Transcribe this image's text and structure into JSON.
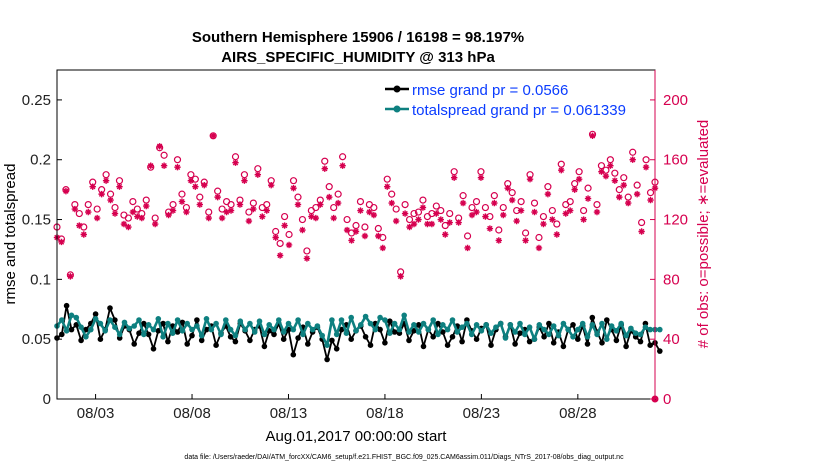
{
  "chart_data": {
    "type": "line",
    "title_line1": "Southern Hemisphere 15906 / 16198 = 98.197%",
    "title_line2": "AIRS_SPECIFIC_HUMIDITY @ 313 hPa",
    "xlabel": "Aug.01,2017 00:00:00 start",
    "ylabel_left": "rmse and totalspread",
    "ylabel_right": "# of obs: o=possible; ∗=evaluated",
    "x_start_day": 1,
    "x_end_day": 32,
    "step_days": 0.25,
    "x_ticks": [
      {
        "day": 3,
        "label": "08/03"
      },
      {
        "day": 8,
        "label": "08/08"
      },
      {
        "day": 13,
        "label": "08/13"
      },
      {
        "day": 18,
        "label": "08/18"
      },
      {
        "day": 23,
        "label": "08/23"
      },
      {
        "day": 28,
        "label": "08/28"
      }
    ],
    "ylim_left": [
      0,
      0.275
    ],
    "yticks_left": [
      "0",
      "0.05",
      "0.1",
      "0.15",
      "0.2",
      "0.25"
    ],
    "ylim_right": [
      0,
      220
    ],
    "yticks_right": [
      "0",
      "40",
      "80",
      "120",
      "160",
      "200"
    ],
    "colors": {
      "rmse": "#000000",
      "spread": "#0e8080",
      "obs": "#d6004f",
      "legend_text": "#0a3cff"
    },
    "series": [
      {
        "name": "rmse grand pr = 0.0566",
        "key": "rmse",
        "values": [
          0.051,
          0.054,
          0.078,
          0.058,
          0.062,
          0.049,
          0.058,
          0.063,
          0.071,
          0.05,
          0.058,
          0.076,
          0.066,
          0.051,
          0.061,
          0.058,
          0.046,
          0.055,
          0.063,
          0.054,
          0.042,
          0.057,
          0.063,
          0.048,
          0.061,
          0.056,
          0.064,
          0.046,
          0.053,
          0.066,
          0.049,
          0.058,
          0.061,
          0.045,
          0.055,
          0.061,
          0.052,
          0.048,
          0.063,
          0.057,
          0.049,
          0.058,
          0.061,
          0.044,
          0.057,
          0.054,
          0.063,
          0.05,
          0.058,
          0.037,
          0.051,
          0.06,
          0.046,
          0.056,
          0.06,
          0.05,
          0.033,
          0.049,
          0.042,
          0.058,
          0.062,
          0.05,
          0.057,
          0.061,
          0.052,
          0.045,
          0.063,
          0.058,
          0.047,
          0.065,
          0.056,
          0.055,
          0.063,
          0.049,
          0.057,
          0.062,
          0.044,
          0.058,
          0.052,
          0.063,
          0.056,
          0.045,
          0.052,
          0.061,
          0.048,
          0.066,
          0.057,
          0.05,
          0.059,
          0.062,
          0.045,
          0.058,
          0.063,
          0.052,
          0.062,
          0.046,
          0.055,
          0.058,
          0.048,
          0.05,
          0.06,
          0.052,
          0.063,
          0.047,
          0.056,
          0.044,
          0.058,
          0.062,
          0.05,
          0.061,
          0.046,
          0.068,
          0.056,
          0.047,
          0.066,
          0.058,
          0.049,
          0.062,
          0.044,
          0.057,
          0.052,
          0.048,
          0.063,
          0.045,
          0.047,
          0.04
        ]
      },
      {
        "name": "totalspread grand pr = 0.061339",
        "key": "spread",
        "values": [
          0.061,
          0.066,
          0.057,
          0.07,
          0.068,
          0.06,
          0.052,
          0.058,
          0.067,
          0.063,
          0.057,
          0.066,
          0.06,
          0.054,
          0.064,
          0.059,
          0.061,
          0.066,
          0.054,
          0.062,
          0.058,
          0.067,
          0.052,
          0.063,
          0.055,
          0.066,
          0.057,
          0.063,
          0.058,
          0.061,
          0.053,
          0.067,
          0.058,
          0.063,
          0.054,
          0.066,
          0.058,
          0.053,
          0.065,
          0.058,
          0.063,
          0.056,
          0.065,
          0.054,
          0.062,
          0.058,
          0.066,
          0.056,
          0.063,
          0.058,
          0.066,
          0.054,
          0.063,
          0.058,
          0.061,
          0.053,
          0.045,
          0.066,
          0.054,
          0.066,
          0.055,
          0.068,
          0.057,
          0.062,
          0.069,
          0.063,
          0.058,
          0.068,
          0.066,
          0.055,
          0.063,
          0.058,
          0.07,
          0.056,
          0.062,
          0.056,
          0.063,
          0.058,
          0.066,
          0.054,
          0.062,
          0.058,
          0.066,
          0.056,
          0.06,
          0.063,
          0.054,
          0.062,
          0.057,
          0.062,
          0.055,
          0.06,
          0.063,
          0.051,
          0.062,
          0.056,
          0.063,
          0.054,
          0.06,
          0.05,
          0.062,
          0.058,
          0.054,
          0.061,
          0.053,
          0.063,
          0.058,
          0.052,
          0.058,
          0.063,
          0.052,
          0.062,
          0.054,
          0.063,
          0.05,
          0.061,
          0.057,
          0.063,
          0.053,
          0.059,
          0.055,
          0.054,
          0.06,
          0.058,
          0.058,
          0.058
        ]
      }
    ],
    "obs_possible": [
      115,
      107,
      140,
      83,
      130,
      124,
      115,
      130,
      145,
      127,
      140,
      150,
      137,
      128,
      146,
      123,
      121,
      132,
      127,
      124,
      133,
      155,
      121,
      168,
      163,
      125,
      130,
      160,
      137,
      128,
      150,
      147,
      135,
      145,
      125,
      176,
      139,
      127,
      132,
      130,
      162,
      133,
      150,
      125,
      131,
      154,
      128,
      130,
      146,
      112,
      104,
      122,
      110,
      146,
      135,
      120,
      99,
      126,
      128,
      133,
      159,
      142,
      128,
      137,
      162,
      120,
      111,
      116,
      132,
      115,
      130,
      128,
      114,
      108,
      147,
      137,
      127,
      85,
      130,
      120,
      124,
      125,
      133,
      122,
      124,
      129,
      126,
      116,
      124,
      152,
      121,
      136,
      109,
      128,
      132,
      152,
      128,
      122,
      136,
      113,
      128,
      144,
      138,
      126,
      132,
      111,
      150,
      131,
      108,
      122,
      142,
      126,
      117,
      157,
      130,
      132,
      144,
      152,
      126,
      141,
      177,
      130,
      156,
      153,
      160,
      151,
      140,
      148,
      135,
      165,
      143,
      118,
      160,
      138,
      145
    ],
    "obs_evaluated": [
      108,
      105,
      139,
      82,
      127,
      116,
      110,
      125,
      142,
      121,
      137,
      146,
      133,
      124,
      142,
      117,
      115,
      125,
      122,
      121,
      129,
      156,
      117,
      169,
      156,
      123,
      126,
      155,
      132,
      125,
      146,
      142,
      130,
      143,
      121,
      176,
      135,
      121,
      125,
      126,
      158,
      130,
      146,
      119,
      127,
      150,
      122,
      126,
      143,
      108,
      96,
      116,
      103,
      141,
      130,
      113,
      94,
      122,
      121,
      130,
      154,
      135,
      121,
      131,
      156,
      113,
      106,
      112,
      126,
      109,
      125,
      123,
      109,
      101,
      142,
      131,
      119,
      82,
      124,
      115,
      117,
      120,
      128,
      117,
      117,
      124,
      120,
      110,
      118,
      148,
      118,
      131,
      101,
      123,
      125,
      148,
      122,
      114,
      131,
      106,
      123,
      141,
      133,
      119,
      126,
      106,
      147,
      125,
      101,
      117,
      137,
      120,
      110,
      153,
      124,
      126,
      140,
      147,
      120,
      134,
      176,
      125,
      152,
      149,
      156,
      146,
      135,
      143,
      131,
      160,
      137,
      112,
      155,
      133,
      141
    ],
    "legend_position": "top-right"
  },
  "footnote": "data file: /Users/raeder/DAI/ATM_forcXX/CAM6_setup/f.e21.FHIST_BGC.f09_025.CAM6assim.011/Diags_NTrS_2017-08/obs_diag_output.nc"
}
